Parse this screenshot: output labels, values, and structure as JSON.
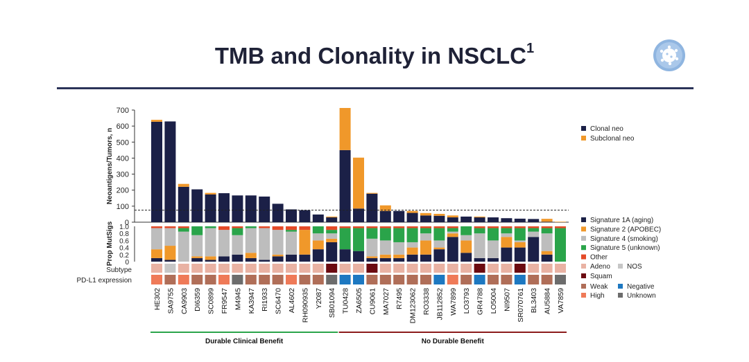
{
  "slide": {
    "title_main": "TMB and Clonality in NSCLC",
    "title_sup": "1",
    "logo_icon": "cell-icon"
  },
  "chart_data": {
    "type": "bar",
    "categories": [
      "HE302",
      "SA9755",
      "CA9903",
      "DI6359",
      "SC0899",
      "FR9547",
      "M4945",
      "KA3947",
      "RI1933",
      "SC6470",
      "AL4602",
      "RH090935",
      "Y2087",
      "SB01094",
      "TU0428",
      "ZA6505",
      "CU9061",
      "MA7027",
      "R7495",
      "DM123062",
      "RO3338",
      "JB112852",
      "WA7899",
      "LO3793",
      "GR4788",
      "LO5004",
      "NI9507",
      "SR070761",
      "BL3403",
      "AU5884",
      "VA7859"
    ],
    "top": {
      "ylabel": "Neoantigens/Tumors, n",
      "ylim": [
        0,
        700
      ],
      "yticks": [
        0,
        100,
        200,
        300,
        400,
        500,
        600,
        700
      ],
      "threshold": 75,
      "colors": {
        "clonal": "#1b2047",
        "subclonal": "#f0982a"
      },
      "series": [
        {
          "name": "Clonal neo",
          "values": [
            627,
            629,
            221,
            205,
            173,
            181,
            167,
            167,
            160,
            115,
            80,
            75,
            48,
            30,
            450,
            85,
            178,
            70,
            70,
            58,
            42,
            40,
            30,
            35,
            30,
            30,
            25,
            22,
            20,
            3,
            0
          ]
        },
        {
          "name": "Subclonal neo",
          "values": [
            12,
            0,
            18,
            0,
            10,
            0,
            0,
            0,
            0,
            0,
            0,
            0,
            0,
            5,
            263,
            318,
            5,
            35,
            0,
            12,
            15,
            12,
            12,
            0,
            5,
            0,
            0,
            0,
            0,
            18,
            3
          ]
        }
      ]
    },
    "mutsigs": {
      "ylabel": "Prop MutSigs",
      "ylim": [
        0,
        1.0
      ],
      "yticks": [
        "0",
        "0.2",
        "0.4",
        "0.6",
        "0.8",
        "1.0"
      ],
      "series": [
        {
          "name": "Signature 1A (aging)",
          "color": "#1b2047",
          "values": [
            0.1,
            0.05,
            0.0,
            0.1,
            0.05,
            0.15,
            0.2,
            0.1,
            0.05,
            0.15,
            0.2,
            0.2,
            0.35,
            0.55,
            0.35,
            0.3,
            0.1,
            0.1,
            0.1,
            0.2,
            0.2,
            0.35,
            0.7,
            0.25,
            0.1,
            0.1,
            0.4,
            0.4,
            0.7,
            0.2,
            0.0
          ]
        },
        {
          "name": "Signature 2 (APOBEC)",
          "color": "#f0982a",
          "values": [
            0.25,
            0.4,
            0.0,
            0.05,
            0.1,
            0.0,
            0.0,
            0.15,
            0.0,
            0.05,
            0.0,
            0.7,
            0.25,
            0.1,
            0.0,
            0.0,
            0.05,
            0.1,
            0.1,
            0.2,
            0.4,
            0.05,
            0.1,
            0.35,
            0.0,
            0.0,
            0.3,
            0.15,
            0.0,
            0.1,
            0.0
          ]
        },
        {
          "name": "Signature 4 (smoking)",
          "color": "#bdbdbd",
          "values": [
            0.6,
            0.5,
            0.85,
            0.6,
            0.8,
            0.75,
            0.55,
            0.7,
            0.9,
            0.7,
            0.65,
            0.0,
            0.2,
            0.15,
            0.0,
            0.0,
            0.5,
            0.4,
            0.35,
            0.15,
            0.2,
            0.2,
            0.05,
            0.15,
            0.7,
            0.5,
            0.1,
            0.05,
            0.15,
            0.5,
            0.0
          ]
        },
        {
          "name": "Signature 5 (unknown)",
          "color": "#2aa44a",
          "values": [
            0.0,
            0.0,
            0.1,
            0.25,
            0.05,
            0.0,
            0.2,
            0.05,
            0.0,
            0.0,
            0.05,
            0.0,
            0.2,
            0.1,
            0.6,
            0.65,
            0.3,
            0.35,
            0.4,
            0.4,
            0.15,
            0.35,
            0.1,
            0.25,
            0.15,
            0.35,
            0.15,
            0.35,
            0.1,
            0.15,
            0.95
          ]
        },
        {
          "name": "Other",
          "color": "#e44a28",
          "values": [
            0.05,
            0.05,
            0.05,
            0.0,
            0.0,
            0.1,
            0.05,
            0.0,
            0.05,
            0.1,
            0.1,
            0.1,
            0.0,
            0.1,
            0.05,
            0.05,
            0.05,
            0.05,
            0.05,
            0.05,
            0.05,
            0.05,
            0.05,
            0.0,
            0.05,
            0.05,
            0.05,
            0.05,
            0.05,
            0.05,
            0.05
          ]
        }
      ]
    },
    "subtype": {
      "label": "Subtype",
      "values": [
        "A",
        "N",
        "A",
        "A",
        "A",
        "A",
        "A",
        "A",
        "A",
        "A",
        "A",
        "A",
        "A",
        "S",
        "A",
        "A",
        "S",
        "A",
        "A",
        "A",
        "A",
        "A",
        "A",
        "A",
        "S",
        "A",
        "A",
        "S",
        "A",
        "A",
        "A"
      ],
      "legend": [
        {
          "key": "A",
          "name": "Adeno",
          "color": "#e9b2a3"
        },
        {
          "key": "N",
          "name": "NOS",
          "color": "#c6c6c6"
        },
        {
          "key": "S",
          "name": "Squam",
          "color": "#6b0a10"
        }
      ]
    },
    "pdl1": {
      "label": "PD-L1 expression",
      "values": [
        "H",
        "W",
        "H",
        "W",
        "W",
        "H",
        "U",
        "W",
        "W",
        "W",
        "H",
        "W",
        "W",
        "U",
        "N",
        "N",
        "W",
        "W",
        "W",
        "W",
        "W",
        "N",
        "H",
        "W",
        "N",
        "W",
        "W",
        "N",
        "W",
        "W",
        "U"
      ],
      "legend": [
        {
          "key": "W",
          "name": "Weak",
          "color": "#b06e58"
        },
        {
          "key": "N",
          "name": "Negative",
          "color": "#1d78c1"
        },
        {
          "key": "H",
          "name": "High",
          "color": "#ef7a58"
        },
        {
          "key": "U",
          "name": "Unknown",
          "color": "#6c6c6c"
        }
      ]
    },
    "groups": [
      {
        "name": "Durable Clinical Benefit",
        "color": "#2aa44a",
        "from": 0,
        "to": 13
      },
      {
        "name": "No Durable Benefit",
        "color": "#8b1a1a",
        "from": 14,
        "to": 30
      }
    ]
  }
}
